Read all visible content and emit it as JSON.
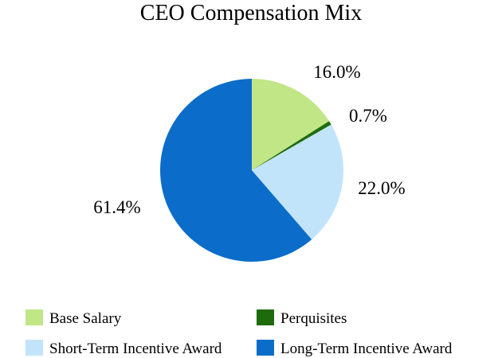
{
  "chart_data": {
    "type": "pie",
    "title": "CEO Compensation Mix",
    "unit": "%",
    "slices": [
      {
        "name": "Base Salary",
        "value": 16.0,
        "label": "16.0%",
        "color": "#c0e686"
      },
      {
        "name": "Perquisites",
        "value": 0.7,
        "label": "0.7%",
        "color": "#1e6b0c"
      },
      {
        "name": "Short-Term Incentive Award",
        "value": 22.0,
        "label": "22.0%",
        "color": "#c2e4fb"
      },
      {
        "name": "Long-Term Incentive Award",
        "value": 61.4,
        "label": "61.4%",
        "color": "#0b6dc9"
      }
    ],
    "start_angle": "12 o'clock",
    "direction": "clockwise",
    "legend": {
      "position": "bottom",
      "columns": 2
    }
  }
}
